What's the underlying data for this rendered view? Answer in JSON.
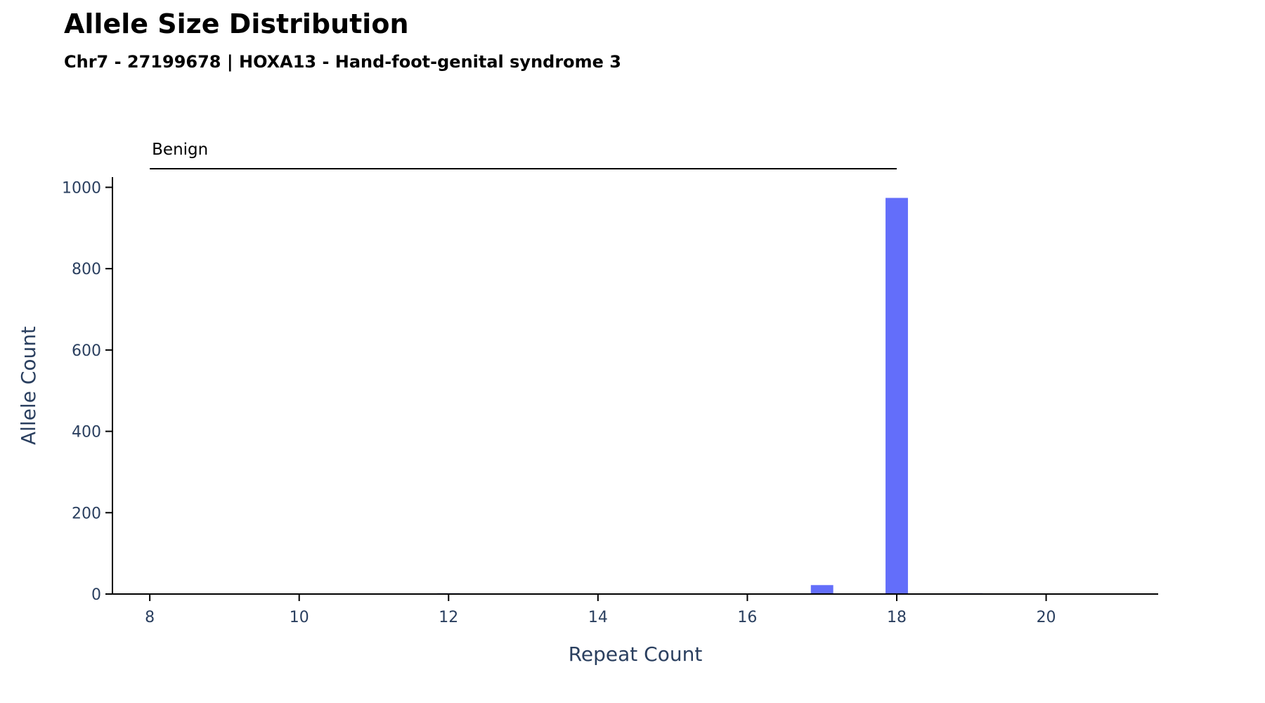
{
  "chart_data": {
    "type": "bar",
    "title": "Allele Size Distribution",
    "subtitle": "Chr7 - 27199678 | HOXA13 - Hand-foot-genital syndrome 3",
    "xlabel": "Repeat Count",
    "ylabel": "Allele Count",
    "x": [
      8,
      12,
      16,
      17,
      18,
      19
    ],
    "values": [
      1,
      2,
      1,
      22,
      974,
      2
    ],
    "xlim": [
      7.5,
      21.5
    ],
    "ylim": [
      0,
      1025
    ],
    "xticks": [
      8,
      10,
      12,
      14,
      16,
      18,
      20
    ],
    "yticks": [
      0,
      200,
      400,
      600,
      800,
      1000
    ],
    "bar_color": "#636efa",
    "grid": false,
    "ranges": [
      {
        "label": "Benign",
        "from": 8,
        "to": 18
      }
    ]
  }
}
